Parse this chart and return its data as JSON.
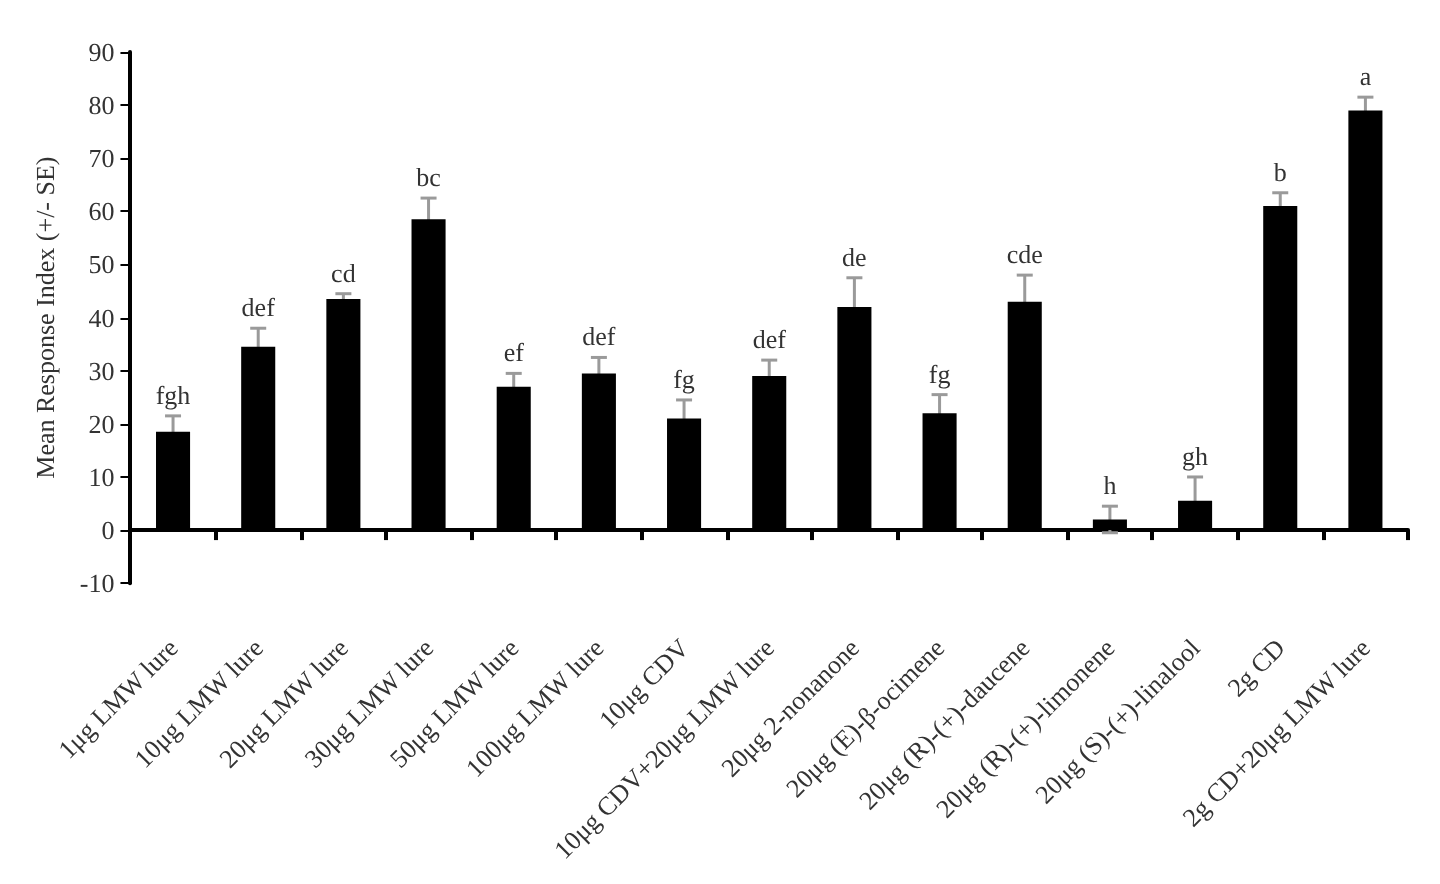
{
  "chart_data": {
    "type": "bar",
    "ylabel": "Mean Response Index (+/- SE)",
    "categories": [
      "1μg LMW lure",
      "10μg LMW lure",
      "20μg LMW lure",
      "30μg LMW lure",
      "50μg LMW lure",
      "100μg LMW lure",
      "10μg CDV",
      "10μg CDV+20μg LMW lure",
      "20μg 2-nonanone",
      "20μg (E)-β-ocimene",
      "20μg (R)-(+)-daucene",
      "20μg (R)-(+)-limonene",
      "20μg (S)-(+)-linalool",
      "2g CD",
      "2g CD+20μg LMW lure"
    ],
    "values": [
      18.5,
      34.5,
      43.5,
      58.5,
      27,
      29.5,
      21,
      29,
      42,
      22,
      43,
      2,
      5.5,
      61,
      79
    ],
    "errors": [
      3,
      3.5,
      1,
      4,
      2.5,
      3,
      3.5,
      3,
      5.5,
      3.5,
      5,
      2.5,
      4.5,
      2.5,
      2.5
    ],
    "color": "#000000",
    "ylim": [
      -10,
      90
    ],
    "yticks": [
      -10,
      0,
      10,
      20,
      30,
      40,
      50,
      60,
      70,
      80,
      90
    ],
    "annotations": [
      {
        "text": "fgh",
        "x": "1μg LMW lure",
        "y": 21.5
      },
      {
        "text": "def",
        "x": "10μg LMW lure",
        "y": 38
      },
      {
        "text": "cd",
        "x": "20μg LMW lure",
        "y": 44.5
      },
      {
        "text": "bc",
        "x": "30μg LMW lure",
        "y": 62.5
      },
      {
        "text": "ef",
        "x": "50μg LMW lure",
        "y": 29.5
      },
      {
        "text": "def",
        "x": "100μg LMW lure",
        "y": 32.5
      },
      {
        "text": "fg",
        "x": "10μg CDV",
        "y": 24.5
      },
      {
        "text": "def",
        "x": "10μg CDV+20μg LMW lure",
        "y": 32
      },
      {
        "text": "de",
        "x": "20μg 2-nonanone",
        "y": 47.5
      },
      {
        "text": "fg",
        "x": "20μg (E)-β-ocimene",
        "y": 25.5
      },
      {
        "text": "cde",
        "x": "20μg (R)-(+)-daucene",
        "y": 48
      },
      {
        "text": "h",
        "x": "20μg (R)-(+)-limonene",
        "y": 4.5
      },
      {
        "text": "gh",
        "x": "20μg (S)-(+)-linalool",
        "y": 10
      },
      {
        "text": "b",
        "x": "2g CD",
        "y": 63.5
      },
      {
        "text": "a",
        "x": "2g CD+20μg LMW lure",
        "y": 81.5
      }
    ]
  }
}
